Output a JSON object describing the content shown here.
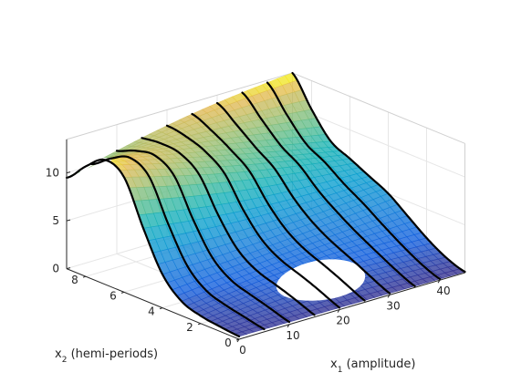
{
  "chart_data": {
    "type": "surface3d",
    "view": "azimuth -40, elevation 30",
    "colormap": "parula",
    "surface_alpha": 0.7,
    "grid": true,
    "xlabel": "x",
    "xlabel_sub": "1",
    "xlabel_suffix": " (amplitude)",
    "ylabel": "x",
    "ylabel_sub": "2",
    "ylabel_suffix": " (hemi-periods)",
    "xlim": [
      0,
      45
    ],
    "ylim": [
      0,
      9
    ],
    "zlim": [
      0,
      13.5
    ],
    "x_ticks": [
      "0",
      "10",
      "20",
      "30",
      "40"
    ],
    "x_tick_values": [
      0,
      10,
      20,
      30,
      40
    ],
    "y_ticks": [
      "0",
      "2",
      "4",
      "6",
      "8"
    ],
    "y_tick_values": [
      0,
      2,
      4,
      6,
      8
    ],
    "z_ticks": [
      "0",
      "5",
      "10"
    ],
    "z_tick_values": [
      0,
      5,
      10
    ],
    "contour_x_values": [
      0,
      5,
      10,
      15,
      20,
      25,
      30,
      35,
      40,
      45
    ],
    "hole": {
      "x_center": 22,
      "y_center": 1.5,
      "x_radius": 8,
      "y_radius": 1.0
    },
    "surface_profiles": {
      "y": [
        0,
        1,
        2,
        3,
        4,
        5,
        6,
        7,
        8,
        9
      ],
      "x0_z": [
        0.3,
        0.5,
        0.8,
        1.5,
        3.5,
        7.5,
        12.0,
        13.0,
        11.5,
        9.5
      ],
      "x45_z": [
        0.1,
        0.8,
        2.0,
        3.5,
        5.0,
        6.0,
        7.0,
        8.0,
        10.5,
        13.5
      ]
    }
  }
}
